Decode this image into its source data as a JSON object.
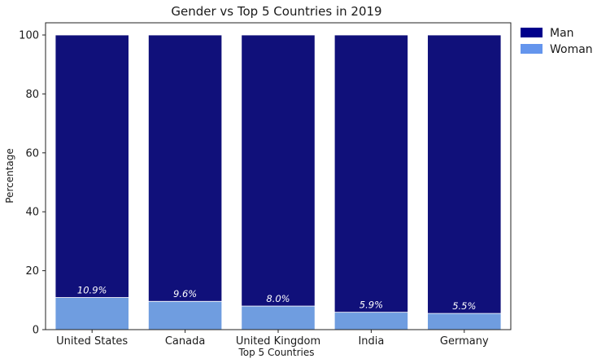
{
  "chart_data": {
    "type": "bar",
    "stacked": true,
    "title": "Gender vs Top 5 Countries in 2019",
    "xlabel": "Top 5 Countries",
    "ylabel": "Percentage",
    "ylim": [
      0,
      100
    ],
    "yticks": [
      0,
      20,
      40,
      60,
      80,
      100
    ],
    "grid": false,
    "categories": [
      "United States",
      "Canada",
      "United Kingdom",
      "India",
      "Germany"
    ],
    "series": [
      {
        "name": "Woman",
        "color": "#6f9de0",
        "values": [
          10.9,
          9.6,
          8.0,
          5.9,
          5.5
        ]
      },
      {
        "name": "Man",
        "color": "#10107a",
        "values": [
          89.1,
          90.4,
          92.0,
          94.1,
          94.5
        ]
      }
    ],
    "data_labels": [
      "10.9%",
      "9.6%",
      "8.0%",
      "5.9%",
      "5.5%"
    ],
    "legend": {
      "placement": "outside-top-right",
      "entries": [
        {
          "label": "Man",
          "color": "#00008b"
        },
        {
          "label": "Woman",
          "color": "#6495ed"
        }
      ]
    }
  }
}
